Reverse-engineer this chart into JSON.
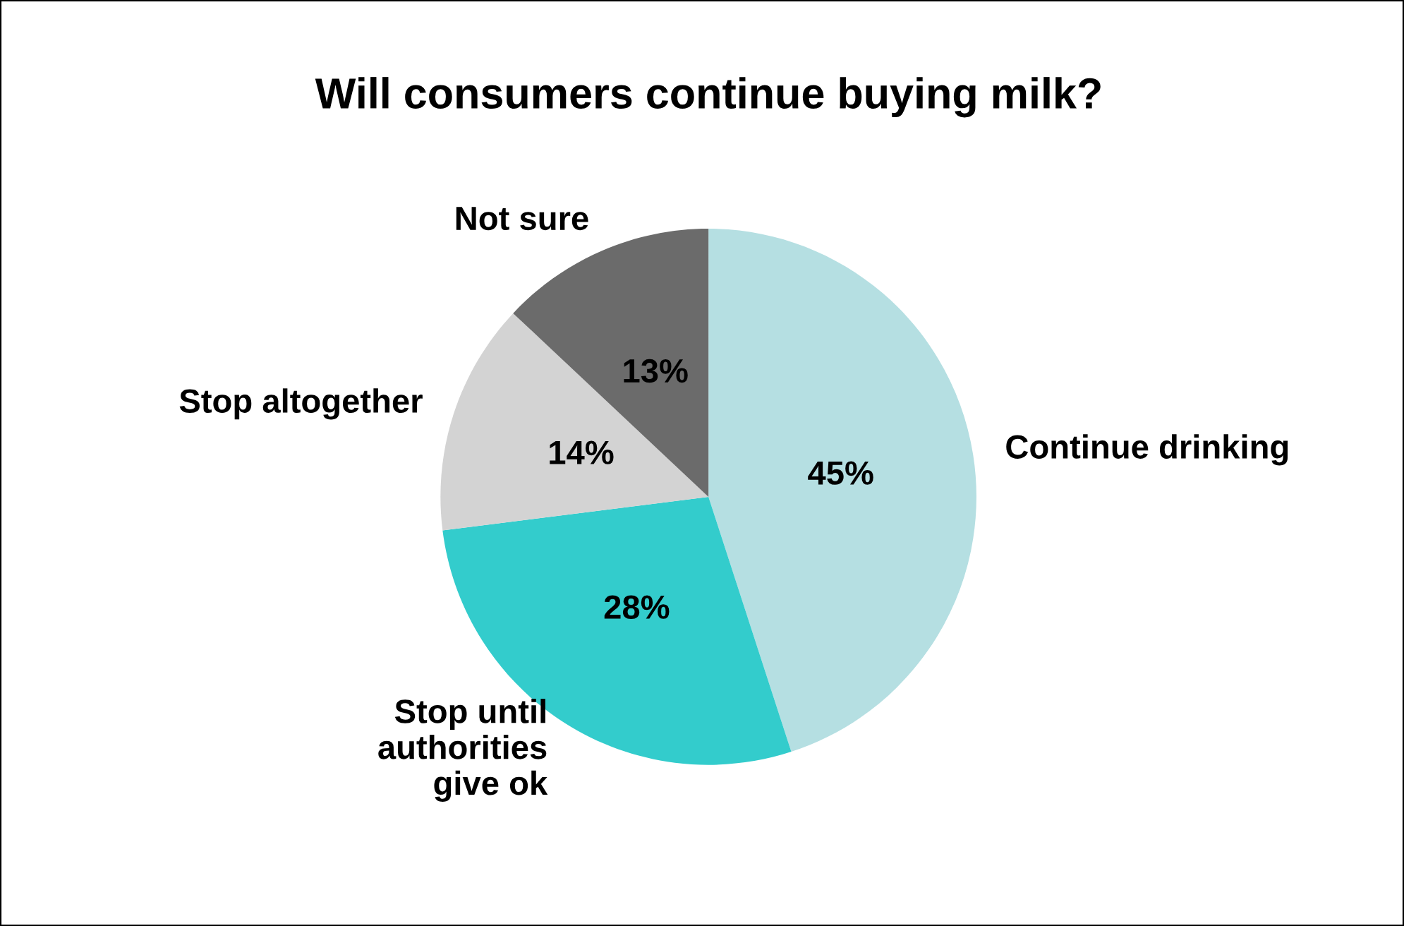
{
  "chart_data": {
    "type": "pie",
    "title": "Will consumers continue buying milk?",
    "categories": [
      "Continue drinking",
      "Stop until\nauthorities\ngive ok",
      "Stop altogether",
      "Not sure"
    ],
    "values": [
      45,
      28,
      14,
      13
    ],
    "value_labels": [
      "45%",
      "28%",
      "14%",
      "13%"
    ],
    "colors": [
      "#b5dfe2",
      "#33cccc",
      "#d3d3d3",
      "#6b6b6b"
    ],
    "legend": false
  }
}
